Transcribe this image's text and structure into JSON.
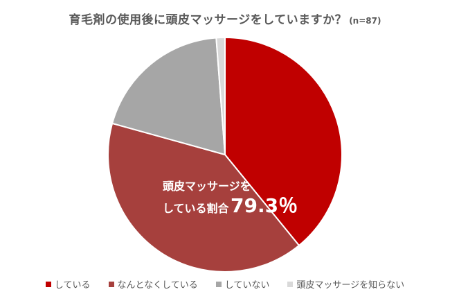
{
  "title": "育毛剤の使用後に頭皮マッサージをしていますか？",
  "sample_size": "(n=87)",
  "annotation": {
    "line1": "頭皮マッサージを",
    "line2": "している割合",
    "value": "79.3％"
  },
  "chart_data": {
    "type": "pie",
    "title": "育毛剤の使用後に頭皮マッサージをしていますか？",
    "start": "12 o'clock, clockwise",
    "legend_position": "bottom",
    "slices": [
      {
        "label": "している",
        "value": 39.1,
        "color": "#c00000"
      },
      {
        "label": "なんとなくしている",
        "value": 40.2,
        "color": "#a6403d"
      },
      {
        "label": "していない",
        "value": 19.5,
        "color": "#a6a6a6"
      },
      {
        "label": "頭皮マッサージを知らない",
        "value": 1.2,
        "color": "#d9d9d9"
      }
    ]
  }
}
